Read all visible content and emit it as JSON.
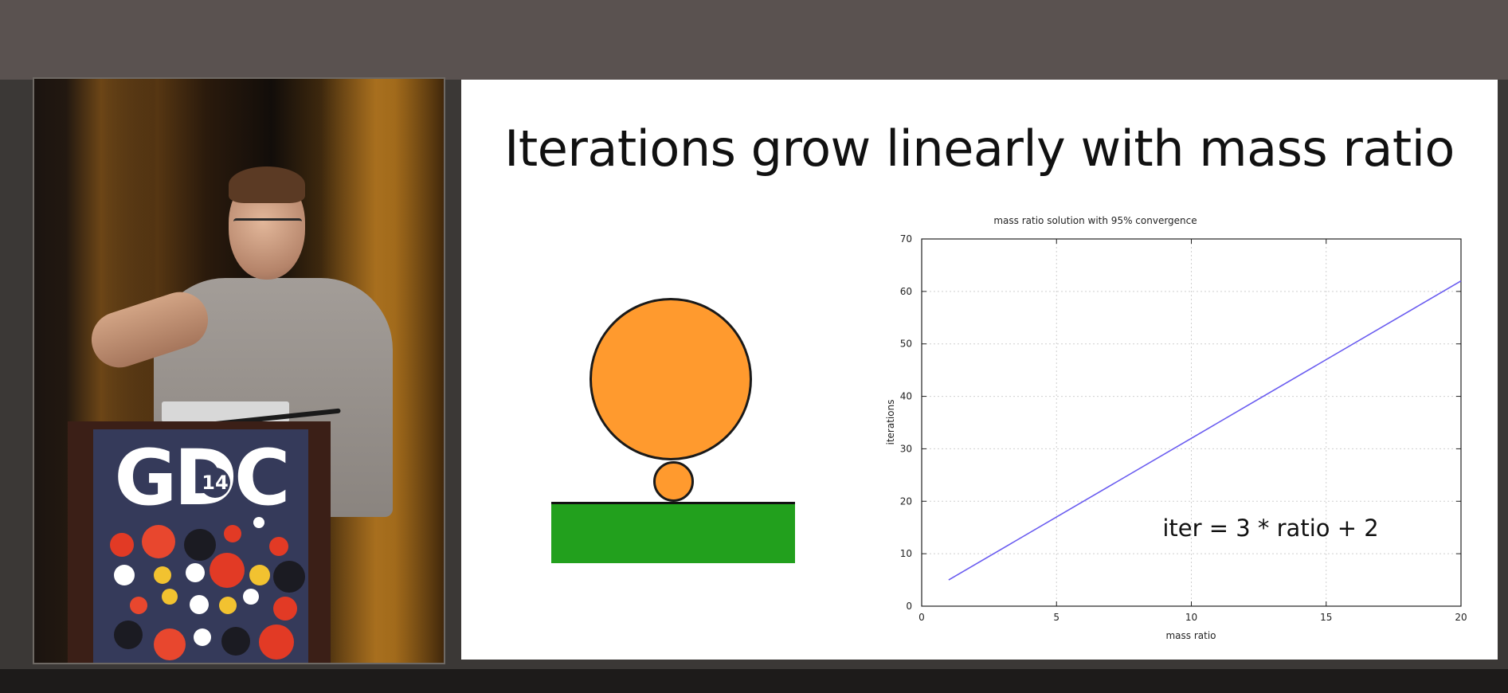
{
  "slide": {
    "title": "Iterations grow linearly with mass ratio",
    "equation": "iter = 3 * ratio + 2"
  },
  "video": {
    "podium_logo": "GDC",
    "podium_year": "14"
  },
  "colors": {
    "ball": "#ff9a2e",
    "ground": "#22a01d",
    "line": "#6a5cf0"
  },
  "chart_data": {
    "type": "line",
    "title": "mass ratio solution with 95% convergence",
    "xlabel": "mass ratio",
    "ylabel": "iterations",
    "xlim": [
      0,
      20
    ],
    "ylim": [
      0,
      70
    ],
    "xticks": [
      0,
      5,
      10,
      15,
      20
    ],
    "yticks": [
      0,
      10,
      20,
      30,
      40,
      50,
      60,
      70
    ],
    "grid": true,
    "annotation": "iter = 3 * ratio + 2",
    "series": [
      {
        "x": [
          1,
          20
        ],
        "y": [
          5,
          62
        ]
      }
    ]
  }
}
